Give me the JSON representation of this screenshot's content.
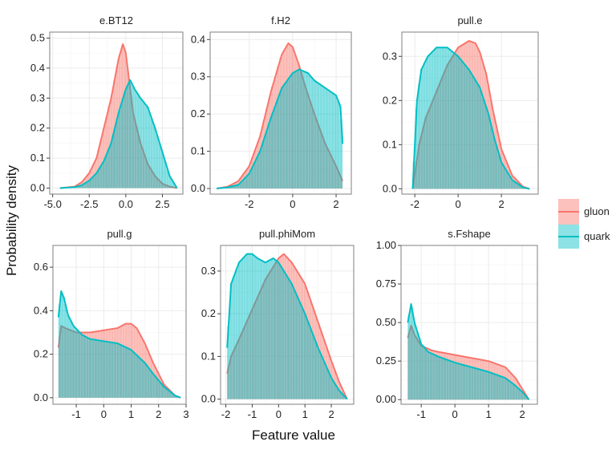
{
  "chart_data": {
    "type": "area",
    "xlabel": "Feature value",
    "ylabel": "Probability density",
    "legend": {
      "placement": "right",
      "entries": [
        {
          "name": "gluon",
          "color": "#F8766D"
        },
        {
          "name": "quark",
          "color": "#00BFC4"
        }
      ]
    },
    "panels": [
      {
        "title": "e.BT12",
        "xlim": [
          -5.2,
          3.9
        ],
        "ylim": [
          -0.02,
          0.52
        ],
        "xticks": [
          -5.0,
          -2.5,
          0.0,
          2.5
        ],
        "xtick_labels": [
          "-5.0",
          "-2.5",
          "0.0",
          "2.5"
        ],
        "yticks": [
          0.0,
          0.1,
          0.2,
          0.3,
          0.4,
          0.5
        ],
        "ytick_labels": [
          "0.0",
          "0.1",
          "0.2",
          "0.3",
          "0.4",
          "0.5"
        ],
        "series": [
          {
            "name": "gluon",
            "x": [
              -4.5,
              -3.5,
              -3.0,
              -2.5,
              -2.0,
              -1.5,
              -1.0,
              -0.5,
              -0.2,
              0.0,
              0.2,
              0.5,
              1.0,
              1.5,
              2.0,
              2.5,
              3.0,
              3.5
            ],
            "y": [
              0.0,
              0.005,
              0.02,
              0.05,
              0.1,
              0.2,
              0.3,
              0.43,
              0.48,
              0.45,
              0.37,
              0.25,
              0.15,
              0.08,
              0.04,
              0.015,
              0.005,
              0.0
            ]
          },
          {
            "name": "quark",
            "x": [
              -4.5,
              -3.5,
              -3.0,
              -2.5,
              -2.0,
              -1.5,
              -1.0,
              -0.5,
              0.0,
              0.3,
              0.6,
              1.0,
              1.5,
              2.0,
              2.5,
              3.0,
              3.5
            ],
            "y": [
              0.0,
              0.003,
              0.01,
              0.025,
              0.05,
              0.09,
              0.15,
              0.25,
              0.33,
              0.36,
              0.33,
              0.3,
              0.27,
              0.2,
              0.12,
              0.04,
              0.0
            ]
          }
        ]
      },
      {
        "title": "f.H2",
        "xlim": [
          -3.8,
          2.7
        ],
        "ylim": [
          -0.015,
          0.42
        ],
        "xticks": [
          -2,
          0,
          2
        ],
        "xtick_labels": [
          "-2",
          "0",
          "2"
        ],
        "yticks": [
          0.0,
          0.1,
          0.2,
          0.3,
          0.4
        ],
        "ytick_labels": [
          "0.0",
          "0.1",
          "0.2",
          "0.3",
          "0.4"
        ],
        "series": [
          {
            "name": "gluon",
            "x": [
              -3.5,
              -3.0,
              -2.5,
              -2.0,
              -1.5,
              -1.0,
              -0.5,
              -0.2,
              0.0,
              0.3,
              0.6,
              1.0,
              1.5,
              2.0,
              2.3
            ],
            "y": [
              0.0,
              0.005,
              0.02,
              0.06,
              0.14,
              0.26,
              0.36,
              0.39,
              0.38,
              0.33,
              0.27,
              0.2,
              0.12,
              0.06,
              0.02
            ]
          },
          {
            "name": "quark",
            "x": [
              -3.5,
              -3.0,
              -2.5,
              -2.0,
              -1.5,
              -1.0,
              -0.5,
              0.0,
              0.3,
              0.7,
              1.0,
              1.5,
              2.0,
              2.2,
              2.3
            ],
            "y": [
              0.0,
              0.003,
              0.01,
              0.04,
              0.1,
              0.19,
              0.27,
              0.31,
              0.32,
              0.31,
              0.29,
              0.27,
              0.25,
              0.22,
              0.12
            ]
          }
        ]
      },
      {
        "title": "pull.e",
        "xlim": [
          -2.6,
          3.7
        ],
        "ylim": [
          -0.012,
          0.355
        ],
        "xticks": [
          -2,
          0,
          2
        ],
        "xtick_labels": [
          "-2",
          "0",
          "2"
        ],
        "yticks": [
          0.0,
          0.1,
          0.2,
          0.3
        ],
        "ytick_labels": [
          "0.0",
          "0.1",
          "0.2",
          "0.3"
        ],
        "series": [
          {
            "name": "gluon",
            "x": [
              -2.1,
              -1.8,
              -1.5,
              -1.0,
              -0.5,
              0.0,
              0.5,
              0.8,
              1.0,
              1.3,
              1.6,
              2.0,
              2.5,
              3.0,
              3.3
            ],
            "y": [
              0.0,
              0.1,
              0.16,
              0.22,
              0.28,
              0.32,
              0.335,
              0.33,
              0.31,
              0.26,
              0.18,
              0.09,
              0.03,
              0.005,
              0.0
            ]
          },
          {
            "name": "quark",
            "x": [
              -2.1,
              -1.9,
              -1.7,
              -1.4,
              -1.0,
              -0.5,
              0.0,
              0.5,
              1.0,
              1.4,
              1.7,
              2.0,
              2.5,
              3.0,
              3.3
            ],
            "y": [
              0.0,
              0.2,
              0.27,
              0.3,
              0.32,
              0.32,
              0.3,
              0.27,
              0.23,
              0.17,
              0.11,
              0.06,
              0.02,
              0.003,
              0.0
            ]
          }
        ]
      },
      {
        "title": "pull.g",
        "xlim": [
          -1.85,
          3.0
        ],
        "ylim": [
          -0.03,
          0.7
        ],
        "xticks": [
          -1,
          0,
          1,
          2,
          3
        ],
        "xtick_labels": [
          "-1",
          "0",
          "1",
          "2",
          "3"
        ],
        "yticks": [
          0.0,
          0.2,
          0.4,
          0.6
        ],
        "ytick_labels": [
          "0.0",
          "0.2",
          "0.4",
          "0.6"
        ],
        "series": [
          {
            "name": "gluon",
            "x": [
              -1.65,
              -1.55,
              -1.4,
              -1.2,
              -1.0,
              -0.5,
              0.0,
              0.5,
              0.8,
              1.0,
              1.2,
              1.5,
              1.8,
              2.2,
              2.6,
              2.8
            ],
            "y": [
              0.23,
              0.33,
              0.32,
              0.31,
              0.3,
              0.3,
              0.31,
              0.32,
              0.34,
              0.34,
              0.32,
              0.25,
              0.16,
              0.06,
              0.01,
              0.0
            ]
          },
          {
            "name": "quark",
            "x": [
              -1.65,
              -1.55,
              -1.45,
              -1.3,
              -1.1,
              -0.8,
              -0.5,
              0.0,
              0.5,
              1.0,
              1.5,
              1.8,
              2.2,
              2.6,
              2.8
            ],
            "y": [
              0.37,
              0.49,
              0.46,
              0.38,
              0.33,
              0.29,
              0.27,
              0.26,
              0.25,
              0.22,
              0.16,
              0.11,
              0.05,
              0.01,
              0.0
            ]
          }
        ]
      },
      {
        "title": "pull.phiMom",
        "xlim": [
          -2.2,
          2.85
        ],
        "ylim": [
          -0.012,
          0.36
        ],
        "xticks": [
          -2,
          -1,
          0,
          1,
          2
        ],
        "xtick_labels": [
          "-2",
          "-1",
          "0",
          "1",
          "2"
        ],
        "yticks": [
          0.0,
          0.1,
          0.2,
          0.3
        ],
        "ytick_labels": [
          "0.0",
          "0.1",
          "0.2",
          "0.3"
        ],
        "series": [
          {
            "name": "gluon",
            "x": [
              -1.95,
              -1.8,
              -1.5,
              -1.0,
              -0.5,
              0.0,
              0.2,
              0.5,
              1.0,
              1.5,
              2.0,
              2.3,
              2.6
            ],
            "y": [
              0.06,
              0.1,
              0.14,
              0.21,
              0.28,
              0.33,
              0.34,
              0.32,
              0.27,
              0.18,
              0.09,
              0.04,
              0.0
            ]
          },
          {
            "name": "quark",
            "x": [
              -1.95,
              -1.8,
              -1.5,
              -1.2,
              -1.0,
              -0.8,
              -0.5,
              -0.2,
              0.0,
              0.5,
              1.0,
              1.5,
              2.0,
              2.3,
              2.6
            ],
            "y": [
              0.12,
              0.27,
              0.32,
              0.34,
              0.34,
              0.33,
              0.32,
              0.33,
              0.32,
              0.27,
              0.2,
              0.12,
              0.05,
              0.02,
              0.0
            ]
          }
        ]
      },
      {
        "title": "s.Fshape",
        "xlim": [
          -1.6,
          2.45
        ],
        "ylim": [
          -0.03,
          1.0
        ],
        "xticks": [
          -1,
          0,
          1,
          2
        ],
        "xtick_labels": [
          "-1",
          "0",
          "1",
          "2"
        ],
        "yticks": [
          0.0,
          0.25,
          0.5,
          0.75,
          1.0
        ],
        "ytick_labels": [
          "0.00",
          "0.25",
          "0.50",
          "0.75",
          "1.00"
        ],
        "series": [
          {
            "name": "gluon",
            "x": [
              -1.4,
              -1.3,
              -1.2,
              -1.0,
              -0.7,
              -0.5,
              0.0,
              0.5,
              1.0,
              1.5,
              1.8,
              2.0,
              2.2
            ],
            "y": [
              0.4,
              0.48,
              0.42,
              0.35,
              0.32,
              0.31,
              0.29,
              0.27,
              0.25,
              0.21,
              0.14,
              0.07,
              0.0
            ]
          },
          {
            "name": "quark",
            "x": [
              -1.4,
              -1.3,
              -1.2,
              -1.0,
              -0.8,
              -0.5,
              0.0,
              0.5,
              1.0,
              1.5,
              1.8,
              2.0,
              2.2
            ],
            "y": [
              0.5,
              0.62,
              0.5,
              0.36,
              0.31,
              0.28,
              0.24,
              0.21,
              0.18,
              0.14,
              0.09,
              0.05,
              0.0
            ]
          }
        ]
      }
    ]
  }
}
